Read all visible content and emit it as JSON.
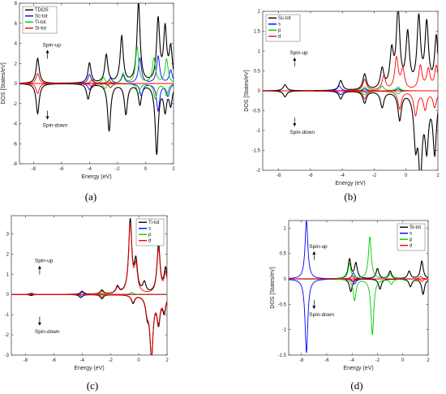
{
  "chart_data": [
    {
      "type": "line",
      "caption": "(a)",
      "xlabel": "Energy (eV)",
      "ylabel": "DOS [States/eV]",
      "xlim": [
        -9,
        2
      ],
      "ylim": [
        -8,
        8
      ],
      "xticks": [
        -8,
        -6,
        -4,
        -2,
        0,
        2
      ],
      "yticks": [
        -8,
        -6,
        -4,
        -2,
        0,
        2,
        4,
        6,
        8
      ],
      "grid": false,
      "legend": "top-left",
      "annotations": {
        "up": "Spin-up",
        "down": "Spin-down"
      },
      "series": [
        {
          "name": "TDOS",
          "color": "#000000",
          "up_peaks": [
            [
              -7.7,
              2.5
            ],
            [
              -4.0,
              2.0
            ],
            [
              -2.8,
              2.8
            ],
            [
              -1.7,
              4.6
            ],
            [
              -0.5,
              8.0
            ],
            [
              0.9,
              6.2
            ],
            [
              1.4,
              5.2
            ],
            [
              1.8,
              3.3
            ]
          ],
          "down_peaks": [
            [
              -7.7,
              -3.0
            ],
            [
              -4.1,
              -1.5
            ],
            [
              -2.6,
              -4.7
            ],
            [
              -1.4,
              -3.0
            ],
            [
              -0.4,
              -2.0
            ],
            [
              0.8,
              -6.9
            ],
            [
              1.4,
              -2.5
            ],
            [
              1.8,
              -2.0
            ]
          ]
        },
        {
          "name": "Sc-tot",
          "color": "#0000ff",
          "up_peaks": [
            [
              -4.0,
              0.9
            ],
            [
              -2.5,
              0.5
            ],
            [
              -1.6,
              0.8
            ],
            [
              -0.4,
              2.5
            ],
            [
              0.9,
              2.7
            ],
            [
              1.8,
              1.3
            ]
          ],
          "down_peaks": [
            [
              -4.0,
              -0.6
            ],
            [
              -2.5,
              -0.4
            ],
            [
              -0.3,
              -1.2
            ],
            [
              0.9,
              -2.7
            ],
            [
              1.6,
              -1.2
            ]
          ]
        },
        {
          "name": "Ti-tot",
          "color": "#00cc00",
          "up_peaks": [
            [
              -3.0,
              0.6
            ],
            [
              -1.6,
              1.0
            ],
            [
              -0.6,
              3.6
            ],
            [
              0.6,
              2.5
            ],
            [
              1.5,
              2.4
            ]
          ],
          "down_peaks": [
            [
              -2.9,
              -0.5
            ],
            [
              -0.5,
              -1.0
            ],
            [
              0.7,
              -1.5
            ],
            [
              1.5,
              -1.2
            ]
          ]
        },
        {
          "name": "Si-tot",
          "color": "#ff0000",
          "up_peaks": [
            [
              -7.7,
              1.0
            ],
            [
              -3.8,
              0.4
            ],
            [
              -2.6,
              0.3
            ]
          ],
          "down_peaks": [
            [
              -7.7,
              -1.0
            ],
            [
              -3.8,
              -0.4
            ],
            [
              -2.5,
              -0.4
            ]
          ]
        }
      ]
    },
    {
      "type": "line",
      "caption": "(b)",
      "xlabel": "Energy (eV)",
      "ylabel": "DOS [States/eV]",
      "xlim": [
        -9,
        2
      ],
      "ylim": [
        -2,
        2
      ],
      "xticks": [
        -8,
        -6,
        -4,
        -2,
        0,
        2
      ],
      "yticks": [
        -2,
        -1.5,
        -1,
        -0.5,
        0,
        0.5,
        1,
        1.5,
        2
      ],
      "grid": false,
      "legend": "top-left",
      "annotations": {
        "up": "Spin-up",
        "down": "Spin-down"
      },
      "series": [
        {
          "name": "Sc-tot",
          "color": "#000000",
          "up_peaks": [
            [
              -7.6,
              0.15
            ],
            [
              -4.1,
              0.25
            ],
            [
              -2.6,
              0.4
            ],
            [
              -1.5,
              0.5
            ],
            [
              -0.9,
              0.9
            ],
            [
              -0.5,
              1.95
            ],
            [
              0.1,
              1.35
            ],
            [
              0.8,
              1.75
            ],
            [
              1.3,
              1.6
            ],
            [
              1.9,
              1.3
            ]
          ],
          "down_peaks": [
            [
              -7.6,
              -0.15
            ],
            [
              -4.1,
              -0.2
            ],
            [
              -2.6,
              -0.3
            ],
            [
              -1.5,
              -0.4
            ],
            [
              -0.4,
              -0.7
            ],
            [
              0.6,
              -1.2
            ],
            [
              0.9,
              -1.95
            ],
            [
              1.3,
              -1.3
            ],
            [
              1.8,
              -1.5
            ]
          ]
        },
        {
          "name": "s",
          "color": "#0000ff",
          "up_peaks": [
            [
              -4.2,
              0.12
            ],
            [
              -2.6,
              0.05
            ],
            [
              -0.5,
              0.05
            ]
          ],
          "down_peaks": [
            [
              -4.1,
              -0.1
            ],
            [
              -2.5,
              -0.04
            ]
          ]
        },
        {
          "name": "p",
          "color": "#00cc00",
          "up_peaks": [
            [
              -2.6,
              0.1
            ],
            [
              -1.5,
              0.12
            ],
            [
              -0.5,
              0.1
            ]
          ],
          "down_peaks": [
            [
              -2.6,
              -0.1
            ],
            [
              -0.5,
              -0.08
            ]
          ]
        },
        {
          "name": "d",
          "color": "#ff0000",
          "up_peaks": [
            [
              -2.6,
              0.28
            ],
            [
              -1.4,
              0.35
            ],
            [
              -0.6,
              0.8
            ],
            [
              -0.2,
              0.5
            ],
            [
              0.9,
              0.6
            ],
            [
              1.4,
              0.5
            ],
            [
              1.9,
              0.6
            ]
          ],
          "down_peaks": [
            [
              -2.6,
              -0.2
            ],
            [
              -0.4,
              -0.45
            ],
            [
              0.6,
              -0.6
            ],
            [
              1.2,
              -0.45
            ],
            [
              1.8,
              -0.4
            ]
          ]
        }
      ]
    },
    {
      "type": "line",
      "caption": "(c)",
      "xlabel": "Energy (eV)",
      "ylabel": "DOS [States/eV]",
      "xlim": [
        -9,
        2
      ],
      "ylim": [
        -3,
        3.9
      ],
      "xticks": [
        -8,
        -6,
        -4,
        -2,
        0,
        2
      ],
      "yticks": [
        -3,
        -2,
        -1,
        0,
        1,
        2,
        3
      ],
      "grid": false,
      "legend": "top-right",
      "annotations": {
        "up": "Spin-up",
        "down": "Spin-down"
      },
      "series": [
        {
          "name": "Ti-tot",
          "color": "#000000",
          "up_peaks": [
            [
              -7.6,
              0.05
            ],
            [
              -4.0,
              0.15
            ],
            [
              -2.6,
              0.2
            ],
            [
              -1.5,
              0.35
            ],
            [
              -0.6,
              3.6
            ],
            [
              -0.2,
              1.5
            ],
            [
              0.4,
              0.5
            ],
            [
              1.4,
              2.4
            ],
            [
              1.9,
              1.2
            ]
          ],
          "down_peaks": [
            [
              -7.6,
              -0.05
            ],
            [
              -4.1,
              -0.15
            ],
            [
              -2.6,
              -0.2
            ],
            [
              -0.4,
              -0.4
            ],
            [
              0.6,
              -0.8
            ],
            [
              0.9,
              -3.0
            ],
            [
              1.4,
              -1.3
            ],
            [
              1.8,
              -0.8
            ]
          ]
        },
        {
          "name": "s",
          "color": "#0000ff",
          "up_peaks": [
            [
              -4.0,
              0.12
            ]
          ],
          "down_peaks": [
            [
              -4.0,
              -0.1
            ]
          ]
        },
        {
          "name": "p",
          "color": "#00cc00",
          "up_peaks": [
            [
              -2.6,
              0.08
            ],
            [
              -0.5,
              0.1
            ]
          ],
          "down_peaks": [
            [
              -2.6,
              -0.08
            ]
          ]
        },
        {
          "name": "d",
          "color": "#ff0000",
          "up_peaks": [
            [
              -2.6,
              0.15
            ],
            [
              -1.5,
              0.3
            ],
            [
              -0.6,
              3.4
            ],
            [
              -0.2,
              1.3
            ],
            [
              1.4,
              2.2
            ],
            [
              1.9,
              1.0
            ]
          ],
          "down_peaks": [
            [
              -2.6,
              -0.15
            ],
            [
              -0.4,
              -0.35
            ],
            [
              0.6,
              -0.7
            ],
            [
              0.9,
              -2.9
            ],
            [
              1.4,
              -1.2
            ],
            [
              1.8,
              -0.7
            ]
          ]
        }
      ]
    },
    {
      "type": "line",
      "caption": "(d)",
      "xlabel": "Energy (eV)",
      "ylabel": "DOS [States/eV]",
      "xlim": [
        -9,
        2
      ],
      "ylim": [
        -1.5,
        1.15
      ],
      "xticks": [
        -8,
        -6,
        -4,
        -2,
        0,
        2
      ],
      "yticks": [
        -1.5,
        -1,
        -0.5,
        0,
        0.5,
        1
      ],
      "grid": false,
      "legend": "top-right",
      "annotations": {
        "up": "Spin-up",
        "down": "Spin-down"
      },
      "series": [
        {
          "name": "Si-tot",
          "color": "#000000",
          "up_peaks": [
            [
              -4.2,
              0.38
            ],
            [
              -3.7,
              0.3
            ],
            [
              -2.0,
              0.2
            ],
            [
              -1.0,
              0.15
            ],
            [
              0.5,
              0.15
            ],
            [
              1.5,
              0.35
            ]
          ],
          "down_peaks": [
            [
              -4.1,
              -0.25
            ],
            [
              -1.8,
              -0.2
            ],
            [
              0.6,
              -0.15
            ],
            [
              1.6,
              -0.3
            ]
          ]
        },
        {
          "name": "s",
          "color": "#0000ff",
          "up_peaks": [
            [
              -7.6,
              1.15
            ],
            [
              -3.9,
              0.12
            ]
          ],
          "down_peaks": [
            [
              -7.6,
              -1.45
            ],
            [
              -3.8,
              -0.1
            ]
          ]
        },
        {
          "name": "p",
          "color": "#00cc00",
          "up_peaks": [
            [
              -4.2,
              0.3
            ],
            [
              -2.6,
              0.83
            ],
            [
              -1.0,
              0.1
            ]
          ],
          "down_peaks": [
            [
              -3.8,
              -0.42
            ],
            [
              -2.4,
              -1.1
            ],
            [
              -0.9,
              -0.1
            ]
          ]
        },
        {
          "name": "d",
          "color": "#ff0000",
          "up_peaks": [
            [
              -4.0,
              0.05
            ],
            [
              1.4,
              0.05
            ]
          ],
          "down_peaks": [
            [
              -4.0,
              -0.05
            ],
            [
              1.5,
              -0.05
            ]
          ]
        }
      ]
    }
  ]
}
